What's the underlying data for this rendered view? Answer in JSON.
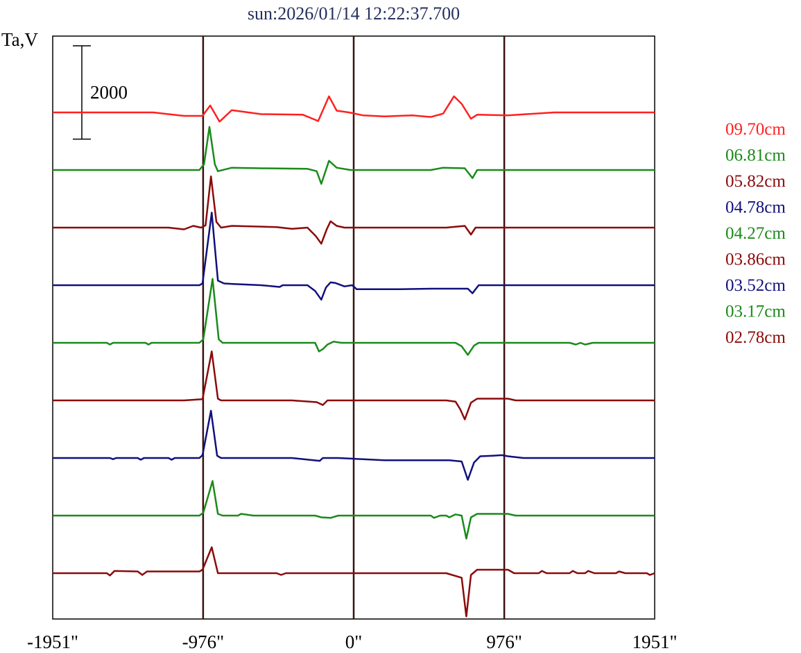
{
  "chart_data": {
    "type": "line",
    "title": "sun:2026/01/14 12:22:37.700",
    "ylabel": "Ta,V",
    "xlabel": "",
    "xlim": [
      -1951,
      1951
    ],
    "x_ticks": [
      -1951,
      -976,
      0,
      976,
      1951
    ],
    "x_tick_labels": [
      "-1951\"",
      "-976\"",
      "0\"",
      "976\"",
      "1951\""
    ],
    "vertical_lines": [
      -976,
      0,
      976
    ],
    "scale_bar": {
      "value": 2000,
      "label": "2000"
    },
    "offset_step": 1000,
    "series": [
      {
        "name": "09.70cm",
        "color": "#ff2020",
        "offset": 0,
        "points": [
          [
            -1951,
            0
          ],
          [
            -1300,
            0
          ],
          [
            -1100,
            -60
          ],
          [
            -980,
            -60
          ],
          [
            -930,
            120
          ],
          [
            -870,
            -160
          ],
          [
            -790,
            40
          ],
          [
            -600,
            -30
          ],
          [
            -330,
            -40
          ],
          [
            -230,
            -150
          ],
          [
            -160,
            280
          ],
          [
            -110,
            30
          ],
          [
            -30,
            0
          ],
          [
            60,
            -50
          ],
          [
            200,
            -70
          ],
          [
            380,
            -50
          ],
          [
            500,
            -80
          ],
          [
            580,
            -20
          ],
          [
            650,
            280
          ],
          [
            700,
            150
          ],
          [
            760,
            -110
          ],
          [
            800,
            -40
          ],
          [
            1000,
            -50
          ],
          [
            1300,
            0
          ],
          [
            1951,
            0
          ]
        ]
      },
      {
        "name": "06.81cm",
        "color": "#1a8a1a",
        "offset": 1000,
        "points": [
          [
            -1951,
            0
          ],
          [
            -1100,
            0
          ],
          [
            -1000,
            0
          ],
          [
            -970,
            100
          ],
          [
            -935,
            750
          ],
          [
            -900,
            100
          ],
          [
            -880,
            -20
          ],
          [
            -790,
            40
          ],
          [
            -600,
            30
          ],
          [
            -300,
            20
          ],
          [
            -240,
            -20
          ],
          [
            -210,
            -240
          ],
          [
            -160,
            160
          ],
          [
            -110,
            40
          ],
          [
            -20,
            0
          ],
          [
            200,
            0
          ],
          [
            500,
            0
          ],
          [
            580,
            40
          ],
          [
            720,
            30
          ],
          [
            770,
            -140
          ],
          [
            800,
            0
          ],
          [
            1951,
            0
          ]
        ]
      },
      {
        "name": "05.82cm",
        "color": "#8b0a0a",
        "offset": 2000,
        "points": [
          [
            -1951,
            0
          ],
          [
            -1200,
            0
          ],
          [
            -1100,
            -30
          ],
          [
            -1040,
            30
          ],
          [
            -990,
            0
          ],
          [
            -960,
            40
          ],
          [
            -925,
            890
          ],
          [
            -890,
            100
          ],
          [
            -860,
            0
          ],
          [
            -790,
            30
          ],
          [
            -500,
            10
          ],
          [
            -400,
            -20
          ],
          [
            -300,
            0
          ],
          [
            -245,
            -150
          ],
          [
            -210,
            -280
          ],
          [
            -175,
            -30
          ],
          [
            -150,
            110
          ],
          [
            -110,
            30
          ],
          [
            -60,
            0
          ],
          [
            400,
            0
          ],
          [
            600,
            0
          ],
          [
            720,
            30
          ],
          [
            760,
            -120
          ],
          [
            790,
            0
          ],
          [
            1000,
            0
          ],
          [
            1300,
            0
          ],
          [
            1951,
            0
          ]
        ]
      },
      {
        "name": "04.78cm",
        "color": "#10107e",
        "offset": 3000,
        "points": [
          [
            -1951,
            0
          ],
          [
            -1100,
            0
          ],
          [
            -1000,
            0
          ],
          [
            -980,
            30
          ],
          [
            -920,
            1260
          ],
          [
            -880,
            80
          ],
          [
            -840,
            30
          ],
          [
            -780,
            20
          ],
          [
            -600,
            0
          ],
          [
            -480,
            -30
          ],
          [
            -460,
            0
          ],
          [
            -300,
            0
          ],
          [
            -250,
            -100
          ],
          [
            -210,
            -250
          ],
          [
            -180,
            -40
          ],
          [
            -150,
            50
          ],
          [
            -120,
            40
          ],
          [
            -60,
            -20
          ],
          [
            -10,
            0
          ],
          [
            20,
            -70
          ],
          [
            300,
            -70
          ],
          [
            500,
            -60
          ],
          [
            740,
            -60
          ],
          [
            770,
            -140
          ],
          [
            810,
            0
          ],
          [
            1951,
            0
          ]
        ]
      },
      {
        "name": "04.27cm",
        "color": "#1a8a1a",
        "offset": 4000,
        "points": [
          [
            -1951,
            0
          ],
          [
            -1600,
            0
          ],
          [
            -1580,
            -30
          ],
          [
            -1560,
            0
          ],
          [
            -1350,
            0
          ],
          [
            -1330,
            -30
          ],
          [
            -1310,
            0
          ],
          [
            -1000,
            0
          ],
          [
            -975,
            60
          ],
          [
            -915,
            1110
          ],
          [
            -875,
            60
          ],
          [
            -850,
            0
          ],
          [
            -600,
            0
          ],
          [
            -250,
            0
          ],
          [
            -225,
            -150
          ],
          [
            -200,
            -110
          ],
          [
            -170,
            -30
          ],
          [
            -130,
            20
          ],
          [
            -80,
            0
          ],
          [
            200,
            0
          ],
          [
            600,
            0
          ],
          [
            660,
            0
          ],
          [
            700,
            -60
          ],
          [
            740,
            -210
          ],
          [
            780,
            -50
          ],
          [
            810,
            0
          ],
          [
            1400,
            0
          ],
          [
            1440,
            -30
          ],
          [
            1470,
            0
          ],
          [
            1500,
            -30
          ],
          [
            1550,
            0
          ],
          [
            1951,
            0
          ]
        ]
      },
      {
        "name": "03.86cm",
        "color": "#8b0a0a",
        "offset": 5000,
        "points": [
          [
            -1951,
            0
          ],
          [
            -1100,
            0
          ],
          [
            -980,
            20
          ],
          [
            -920,
            850
          ],
          [
            -880,
            30
          ],
          [
            -860,
            0
          ],
          [
            -400,
            0
          ],
          [
            -240,
            -30
          ],
          [
            -200,
            -80
          ],
          [
            -170,
            0
          ],
          [
            -150,
            0
          ],
          [
            -100,
            0
          ],
          [
            400,
            0
          ],
          [
            600,
            0
          ],
          [
            660,
            -20
          ],
          [
            690,
            -150
          ],
          [
            720,
            -330
          ],
          [
            760,
            -40
          ],
          [
            800,
            30
          ],
          [
            1000,
            30
          ],
          [
            1050,
            0
          ],
          [
            1951,
            0
          ]
        ]
      },
      {
        "name": "03.52cm",
        "color": "#10107e",
        "offset": 6000,
        "points": [
          [
            -1951,
            0
          ],
          [
            -1580,
            0
          ],
          [
            -1560,
            -20
          ],
          [
            -1540,
            0
          ],
          [
            -1400,
            0
          ],
          [
            -1380,
            -30
          ],
          [
            -1360,
            0
          ],
          [
            -1200,
            0
          ],
          [
            -1180,
            -30
          ],
          [
            -1160,
            0
          ],
          [
            -1000,
            0
          ],
          [
            -980,
            50
          ],
          [
            -925,
            820
          ],
          [
            -885,
            40
          ],
          [
            -860,
            0
          ],
          [
            -400,
            0
          ],
          [
            -220,
            -50
          ],
          [
            -200,
            0
          ],
          [
            -100,
            0
          ],
          [
            200,
            -40
          ],
          [
            550,
            -40
          ],
          [
            620,
            -40
          ],
          [
            700,
            -60
          ],
          [
            740,
            -380
          ],
          [
            780,
            -80
          ],
          [
            820,
            30
          ],
          [
            900,
            40
          ],
          [
            960,
            50
          ],
          [
            1000,
            30
          ],
          [
            1100,
            0
          ],
          [
            1951,
            0
          ]
        ]
      },
      {
        "name": "03.17cm",
        "color": "#1a8a1a",
        "offset": 7000,
        "points": [
          [
            -1951,
            0
          ],
          [
            -1000,
            0
          ],
          [
            -975,
            50
          ],
          [
            -915,
            600
          ],
          [
            -880,
            30
          ],
          [
            -850,
            0
          ],
          [
            -750,
            0
          ],
          [
            -730,
            30
          ],
          [
            -650,
            0
          ],
          [
            -250,
            0
          ],
          [
            -210,
            -30
          ],
          [
            -150,
            -40
          ],
          [
            -100,
            0
          ],
          [
            500,
            0
          ],
          [
            520,
            -40
          ],
          [
            560,
            0
          ],
          [
            600,
            0
          ],
          [
            620,
            -30
          ],
          [
            660,
            20
          ],
          [
            700,
            0
          ],
          [
            730,
            -400
          ],
          [
            760,
            -30
          ],
          [
            800,
            30
          ],
          [
            1000,
            30
          ],
          [
            1050,
            0
          ],
          [
            1951,
            0
          ]
        ]
      },
      {
        "name": "02.78cm",
        "color": "#8b0a0a",
        "offset": 8000,
        "points": [
          [
            -1951,
            0
          ],
          [
            -1600,
            0
          ],
          [
            -1580,
            -40
          ],
          [
            -1550,
            40
          ],
          [
            -1400,
            30
          ],
          [
            -1370,
            -30
          ],
          [
            -1340,
            30
          ],
          [
            -1000,
            30
          ],
          [
            -980,
            60
          ],
          [
            -920,
            450
          ],
          [
            -880,
            0
          ],
          [
            -850,
            0
          ],
          [
            -500,
            0
          ],
          [
            -470,
            -30
          ],
          [
            -440,
            0
          ],
          [
            -300,
            0
          ],
          [
            500,
            0
          ],
          [
            600,
            0
          ],
          [
            700,
            -80
          ],
          [
            730,
            -750
          ],
          [
            760,
            -30
          ],
          [
            800,
            60
          ],
          [
            1000,
            60
          ],
          [
            1040,
            0
          ],
          [
            1200,
            0
          ],
          [
            1220,
            40
          ],
          [
            1250,
            0
          ],
          [
            1400,
            0
          ],
          [
            1420,
            40
          ],
          [
            1450,
            0
          ],
          [
            1500,
            0
          ],
          [
            1520,
            40
          ],
          [
            1560,
            0
          ],
          [
            1700,
            0
          ],
          [
            1720,
            30
          ],
          [
            1760,
            0
          ],
          [
            1900,
            0
          ],
          [
            1920,
            -30
          ],
          [
            1951,
            0
          ]
        ]
      }
    ]
  }
}
